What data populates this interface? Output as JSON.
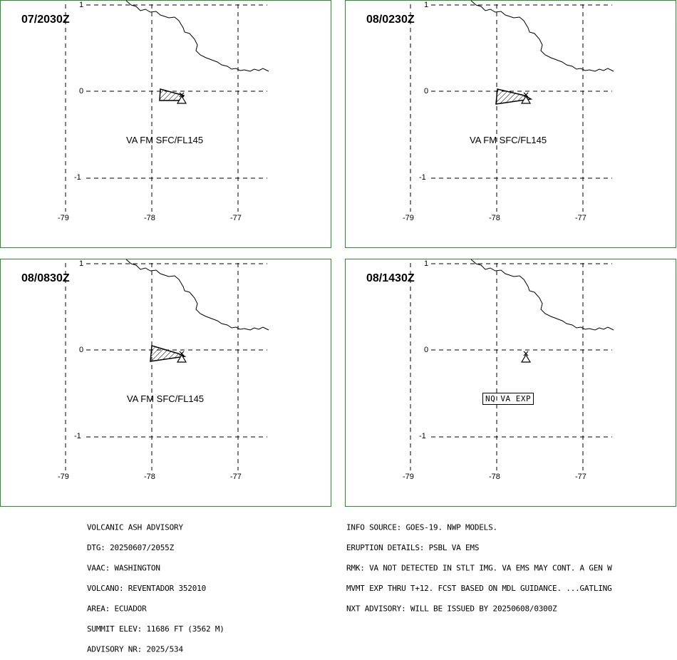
{
  "panels": [
    {
      "time": "07/2030Z",
      "label": "VA FM SFC/FL145",
      "nq": false
    },
    {
      "time": "08/0230Z",
      "label": "VA FM SFC/FL145",
      "nq": false
    },
    {
      "time": "08/0830Z",
      "label": "VA FM SFC/FL145",
      "nq": false
    },
    {
      "time": "08/1430Z",
      "label": "NQ VA EXP",
      "nq": true
    }
  ],
  "axes": {
    "lon_labels": [
      "-79",
      "-78",
      "-77"
    ],
    "lat_labels": [
      "1",
      "0",
      "-1"
    ]
  },
  "advisory_left": [
    "VOLCANIC ASH ADVISORY",
    "DTG: 20250607/2055Z",
    "VAAC: WASHINGTON",
    "VOLCANO: REVENTADOR 352010",
    "AREA: ECUADOR",
    "SUMMIT ELEV: 11686 FT (3562 M)",
    "ADVISORY NR: 2025/534"
  ],
  "advisory_right": [
    "INFO SOURCE: GOES-19. NWP MODELS.",
    "ERUPTION DETAILS: PSBL VA EMS",
    "RMK: VA NOT DETECTED IN STLT IMG. VA EMS MAY CONT. A GEN W",
    "MVMT EXP THRU T+12. FCST BASED ON MDL GUIDANCE. ...GATLING",
    "NXT ADVISORY: WILL BE ISSUED BY 20250608/0300Z"
  ],
  "colors": {
    "panel_border": "#2e8b2e",
    "lines": "#000000"
  },
  "icons": {
    "volcano": "volcano-triangle-icon",
    "ash": "hatched-polygon-icon"
  }
}
